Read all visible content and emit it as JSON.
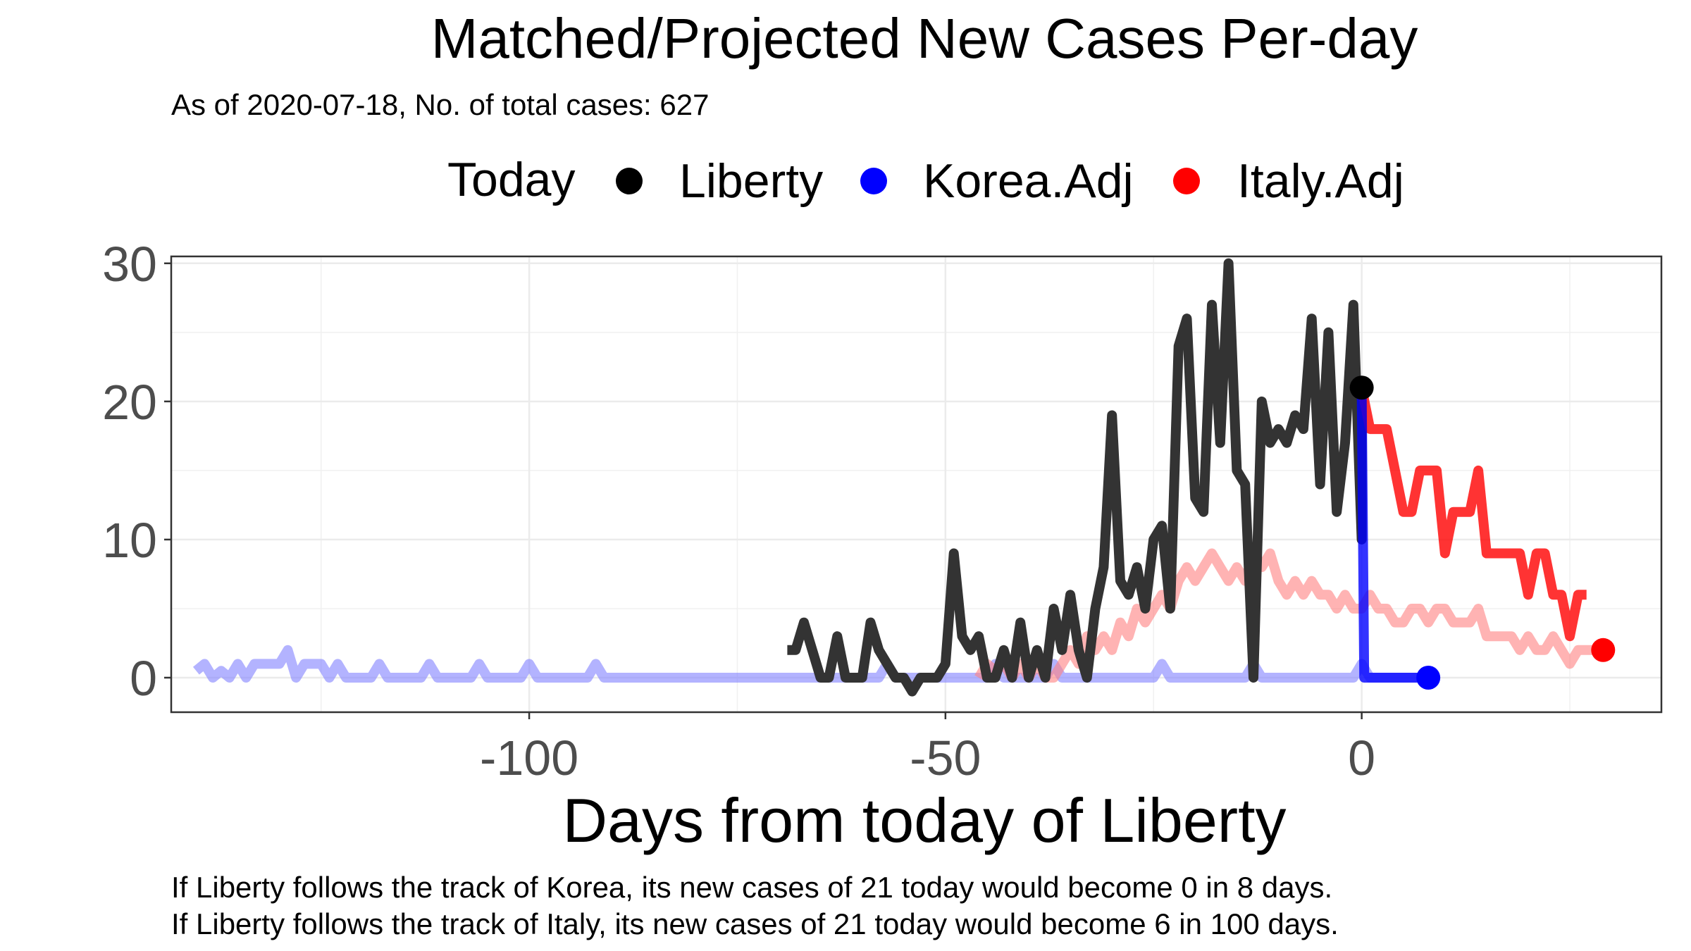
{
  "chart_data": {
    "type": "line",
    "title": "Matched/Projected New Cases Per-day",
    "subtitle": "As of 2020-07-18, No. of total cases: 627",
    "xlabel": "Days from today of Liberty",
    "ylabel": "",
    "xlim": [
      -143,
      36
    ],
    "ylim": [
      -2.5,
      30.5
    ],
    "x_ticks": [
      -100,
      -50,
      0
    ],
    "y_ticks": [
      0,
      10,
      20,
      30
    ],
    "grid": true,
    "legend_position": "top",
    "legend": {
      "title": "Today",
      "items": [
        {
          "label": "Liberty",
          "color": "#000000"
        },
        {
          "label": "Korea.Adj",
          "color": "#0000ff"
        },
        {
          "label": "Italy.Adj",
          "color": "#ff0000"
        }
      ]
    },
    "footnotes": [
      "If Liberty follows the track of Korea, its new cases of 21 today would become 0 in 8 days.",
      "If Liberty follows the track of Italy, its new cases of 21 today would become 6 in 100 days."
    ],
    "series": [
      {
        "color": "#8080ff",
        "opacity": 0.6,
        "points": [
          [
            -140,
            0.5
          ],
          [
            -139,
            1
          ],
          [
            -138,
            0
          ],
          [
            -137,
            0.5
          ],
          [
            -136,
            0
          ],
          [
            -135,
            1
          ],
          [
            -134,
            0
          ],
          [
            -133,
            1
          ],
          [
            -130,
            1
          ],
          [
            -129,
            2
          ],
          [
            -128,
            0
          ],
          [
            -127,
            1
          ],
          [
            -125,
            1
          ],
          [
            -124,
            0
          ],
          [
            -123,
            1
          ],
          [
            -122,
            0
          ],
          [
            -120,
            0
          ],
          [
            -119,
            0
          ],
          [
            -118,
            1
          ],
          [
            -117,
            0
          ],
          [
            -113,
            0
          ],
          [
            -112,
            1
          ],
          [
            -111,
            0
          ],
          [
            -107,
            0
          ],
          [
            -106,
            1
          ],
          [
            -105,
            0
          ],
          [
            -101,
            0
          ],
          [
            -100,
            1
          ],
          [
            -99,
            0
          ],
          [
            -93,
            0
          ],
          [
            -92,
            1
          ],
          [
            -91,
            0
          ],
          [
            -58,
            0
          ],
          [
            -57,
            1
          ],
          [
            -56,
            0
          ],
          [
            -45,
            0
          ],
          [
            -44,
            1
          ],
          [
            -43,
            0
          ],
          [
            -38,
            0
          ],
          [
            -37,
            1
          ],
          [
            -36,
            0
          ],
          [
            -25,
            0
          ],
          [
            -24,
            1
          ],
          [
            -23,
            0
          ],
          [
            -14,
            0
          ],
          [
            -13,
            1
          ],
          [
            -12,
            0
          ],
          [
            -1,
            0
          ],
          [
            0,
            1
          ],
          [
            1,
            0
          ],
          [
            8,
            0
          ]
        ]
      },
      {
        "color": "#ff8080",
        "opacity": 0.6,
        "points": [
          [
            -46,
            0
          ],
          [
            -45,
            1
          ],
          [
            -44,
            0.5
          ],
          [
            -43,
            1
          ],
          [
            -42,
            0
          ],
          [
            -41,
            1
          ],
          [
            -40,
            0
          ],
          [
            -39,
            1
          ],
          [
            -38,
            0
          ],
          [
            -37,
            0
          ],
          [
            -36,
            1
          ],
          [
            -35,
            2
          ],
          [
            -34,
            1
          ],
          [
            -33,
            3
          ],
          [
            -32,
            2
          ],
          [
            -31,
            3
          ],
          [
            -30,
            2
          ],
          [
            -29,
            4
          ],
          [
            -28,
            3
          ],
          [
            -27,
            5
          ],
          [
            -26,
            4
          ],
          [
            -25,
            5
          ],
          [
            -24,
            6
          ],
          [
            -23,
            5
          ],
          [
            -22,
            7
          ],
          [
            -21,
            8
          ],
          [
            -20,
            7
          ],
          [
            -19,
            8
          ],
          [
            -18,
            9
          ],
          [
            -17,
            8
          ],
          [
            -16,
            7
          ],
          [
            -15,
            8
          ],
          [
            -14,
            7
          ],
          [
            -13,
            9
          ],
          [
            -12,
            8
          ],
          [
            -11,
            9
          ],
          [
            -10,
            7
          ],
          [
            -9,
            6
          ],
          [
            -8,
            7
          ],
          [
            -7,
            6
          ],
          [
            -6,
            7
          ],
          [
            -5,
            6
          ],
          [
            -4,
            6
          ],
          [
            -3,
            5
          ],
          [
            -2,
            6
          ],
          [
            -1,
            5
          ],
          [
            0,
            5
          ],
          [
            1,
            6
          ],
          [
            2,
            5
          ],
          [
            3,
            5
          ],
          [
            4,
            4
          ],
          [
            5,
            4
          ],
          [
            6,
            5
          ],
          [
            7,
            5
          ],
          [
            8,
            4
          ],
          [
            9,
            5
          ],
          [
            10,
            5
          ],
          [
            11,
            4
          ],
          [
            12,
            4
          ],
          [
            13,
            4
          ],
          [
            14,
            5
          ],
          [
            15,
            3
          ],
          [
            16,
            3
          ],
          [
            18,
            3
          ],
          [
            19,
            2
          ],
          [
            20,
            3
          ],
          [
            21,
            2
          ],
          [
            22,
            2
          ],
          [
            23,
            3
          ],
          [
            24,
            2
          ],
          [
            25,
            1
          ],
          [
            26,
            2
          ],
          [
            28,
            2
          ]
        ]
      },
      {
        "name": "Liberty",
        "color": "#333333",
        "opacity": 1,
        "points": [
          [
            -69,
            2
          ],
          [
            -68,
            2
          ],
          [
            -67,
            4
          ],
          [
            -66,
            2
          ],
          [
            -65,
            0
          ],
          [
            -64,
            0
          ],
          [
            -63,
            3
          ],
          [
            -62,
            0
          ],
          [
            -61,
            0
          ],
          [
            -60,
            0
          ],
          [
            -59,
            4
          ],
          [
            -58,
            2
          ],
          [
            -57,
            1
          ],
          [
            -56,
            0
          ],
          [
            -55,
            0
          ],
          [
            -54,
            -1
          ],
          [
            -53,
            0
          ],
          [
            -52,
            0
          ],
          [
            -51,
            0
          ],
          [
            -50,
            1
          ],
          [
            -49,
            9
          ],
          [
            -48,
            3
          ],
          [
            -47,
            2
          ],
          [
            -46,
            3
          ],
          [
            -45,
            0
          ],
          [
            -44,
            0
          ],
          [
            -43,
            2
          ],
          [
            -42,
            0
          ],
          [
            -41,
            4
          ],
          [
            -40,
            0
          ],
          [
            -39,
            2
          ],
          [
            -38,
            0
          ],
          [
            -37,
            5
          ],
          [
            -36,
            2
          ],
          [
            -35,
            6
          ],
          [
            -34,
            2
          ],
          [
            -33,
            0
          ],
          [
            -32,
            5
          ],
          [
            -31,
            8
          ],
          [
            -30,
            19
          ],
          [
            -29,
            7
          ],
          [
            -28,
            6
          ],
          [
            -27,
            8
          ],
          [
            -26,
            5
          ],
          [
            -25,
            10
          ],
          [
            -24,
            11
          ],
          [
            -23,
            5
          ],
          [
            -22,
            24
          ],
          [
            -21,
            26
          ],
          [
            -20,
            13
          ],
          [
            -19,
            12
          ],
          [
            -18,
            27
          ],
          [
            -17,
            17
          ],
          [
            -16,
            30
          ],
          [
            -15,
            15
          ],
          [
            -14,
            14
          ],
          [
            -13,
            0
          ],
          [
            -12,
            20
          ],
          [
            -11,
            17
          ],
          [
            -10,
            18
          ],
          [
            -9,
            17
          ],
          [
            -8,
            19
          ],
          [
            -7,
            18
          ],
          [
            -6,
            26
          ],
          [
            -5,
            14
          ],
          [
            -4,
            25
          ],
          [
            -3,
            12
          ],
          [
            -2,
            17
          ],
          [
            -1,
            27
          ],
          [
            0,
            10
          ],
          [
            0,
            21
          ]
        ]
      },
      {
        "name": "Italy.Adj",
        "color": "#ff0000",
        "opacity": 0.8,
        "points": [
          [
            0,
            21
          ],
          [
            1,
            18
          ],
          [
            2,
            18
          ],
          [
            3,
            18
          ],
          [
            4,
            15
          ],
          [
            5,
            12
          ],
          [
            6,
            12
          ],
          [
            7,
            15
          ],
          [
            8,
            15
          ],
          [
            9,
            15
          ],
          [
            10,
            9
          ],
          [
            11,
            12
          ],
          [
            12,
            12
          ],
          [
            13,
            12
          ],
          [
            14,
            15
          ],
          [
            15,
            9
          ],
          [
            16,
            9
          ],
          [
            17,
            9
          ],
          [
            18,
            9
          ],
          [
            19,
            9
          ],
          [
            20,
            6
          ],
          [
            21,
            9
          ],
          [
            22,
            9
          ],
          [
            23,
            6
          ],
          [
            24,
            6
          ],
          [
            25,
            3
          ],
          [
            26,
            6
          ],
          [
            27,
            6
          ]
        ]
      },
      {
        "name": "Korea.Adj",
        "color": "#0000ff",
        "opacity": 0.8,
        "points": [
          [
            0,
            21
          ],
          [
            0.3,
            0
          ],
          [
            1,
            0
          ],
          [
            8,
            0
          ]
        ]
      }
    ],
    "today_markers": [
      {
        "label": "Liberty",
        "x": 0,
        "y": 21,
        "color": "#000000"
      },
      {
        "label": "Korea.Adj",
        "x": 8,
        "y": 0,
        "color": "#0000ff"
      },
      {
        "label": "Italy.Adj",
        "x": 29,
        "y": 2,
        "color": "#ff0000"
      }
    ]
  }
}
